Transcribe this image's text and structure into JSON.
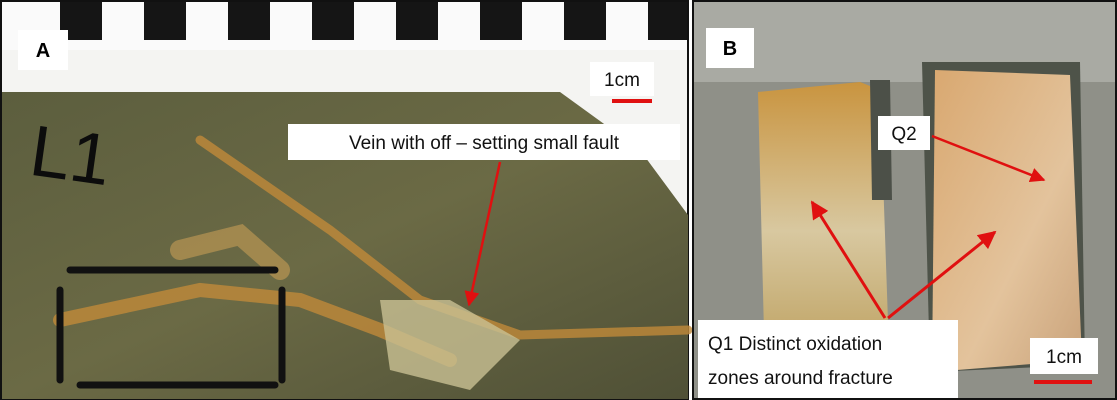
{
  "panel_a": {
    "label": "A",
    "scale": "1cm",
    "marker": "L1",
    "callout": "Vein with off – setting small fault"
  },
  "panel_b": {
    "label": "B",
    "scale": "1cm",
    "callout_q2": "Q2",
    "callout_q1": [
      "Q1 Distinct oxidation",
      "zones around fracture"
    ]
  }
}
